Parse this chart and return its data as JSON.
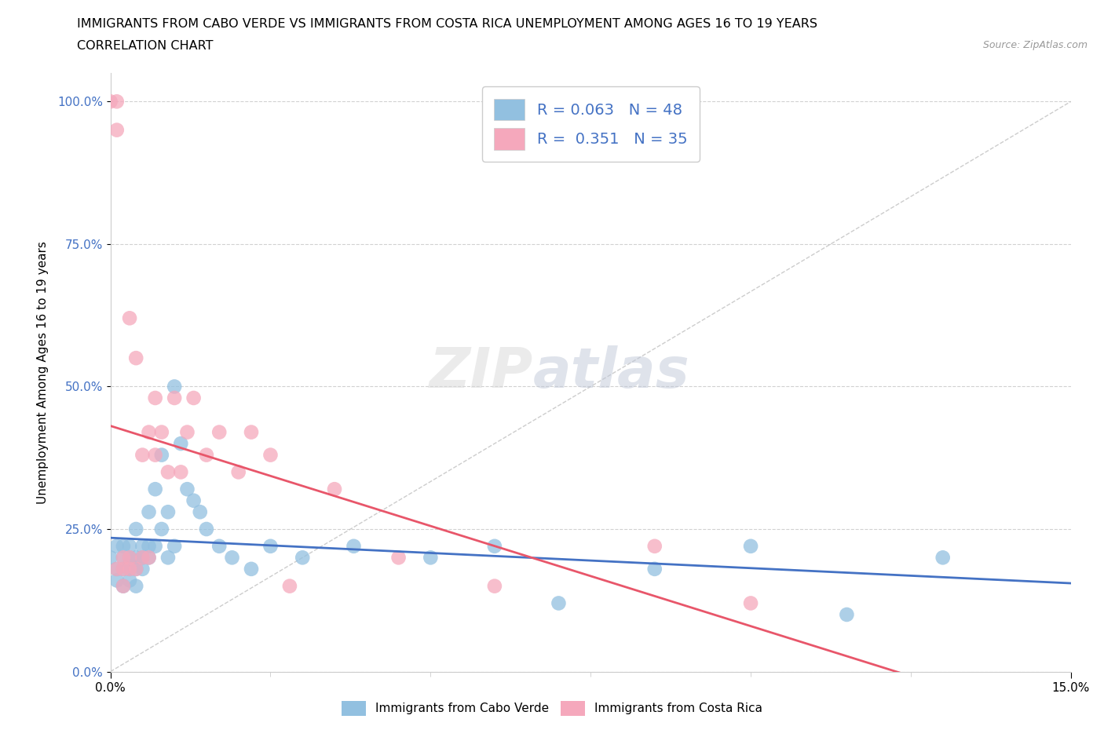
{
  "title_line1": "IMMIGRANTS FROM CABO VERDE VS IMMIGRANTS FROM COSTA RICA UNEMPLOYMENT AMONG AGES 16 TO 19 YEARS",
  "title_line2": "CORRELATION CHART",
  "source_text": "Source: ZipAtlas.com",
  "ylabel": "Unemployment Among Ages 16 to 19 years",
  "xmin": 0.0,
  "xmax": 0.15,
  "ymin": 0.0,
  "ymax": 1.05,
  "ytick_labels": [
    "0.0%",
    "25.0%",
    "50.0%",
    "75.0%",
    "100.0%"
  ],
  "ytick_values": [
    0.0,
    0.25,
    0.5,
    0.75,
    1.0
  ],
  "xtick_values": [
    0.0,
    0.15
  ],
  "xtick_labels": [
    "0.0%",
    "15.0%"
  ],
  "legend_label1": "Immigrants from Cabo Verde",
  "legend_label2": "Immigrants from Costa Rica",
  "R1": 0.063,
  "N1": 48,
  "R2": 0.351,
  "N2": 35,
  "color_blue": "#92C0E0",
  "color_pink": "#F5A8BC",
  "line_color_blue": "#4472C4",
  "line_color_pink": "#E8566A",
  "watermark1": "ZIP",
  "watermark2": "atlas",
  "cabo_verde_x": [
    0.0,
    0.001,
    0.001,
    0.001,
    0.002,
    0.002,
    0.002,
    0.002,
    0.003,
    0.003,
    0.003,
    0.003,
    0.004,
    0.004,
    0.004,
    0.004,
    0.005,
    0.005,
    0.005,
    0.006,
    0.006,
    0.006,
    0.007,
    0.007,
    0.008,
    0.008,
    0.009,
    0.009,
    0.01,
    0.01,
    0.011,
    0.012,
    0.013,
    0.014,
    0.015,
    0.017,
    0.019,
    0.022,
    0.025,
    0.03,
    0.038,
    0.05,
    0.06,
    0.07,
    0.085,
    0.1,
    0.115,
    0.13
  ],
  "cabo_verde_y": [
    0.2,
    0.18,
    0.22,
    0.16,
    0.2,
    0.18,
    0.15,
    0.22,
    0.2,
    0.18,
    0.22,
    0.16,
    0.25,
    0.2,
    0.18,
    0.15,
    0.22,
    0.2,
    0.18,
    0.28,
    0.22,
    0.2,
    0.32,
    0.22,
    0.38,
    0.25,
    0.28,
    0.2,
    0.5,
    0.22,
    0.4,
    0.32,
    0.3,
    0.28,
    0.25,
    0.22,
    0.2,
    0.18,
    0.22,
    0.2,
    0.22,
    0.2,
    0.22,
    0.12,
    0.18,
    0.22,
    0.1,
    0.2
  ],
  "costa_rica_x": [
    0.0,
    0.001,
    0.001,
    0.001,
    0.002,
    0.002,
    0.002,
    0.003,
    0.003,
    0.003,
    0.004,
    0.004,
    0.005,
    0.005,
    0.006,
    0.006,
    0.007,
    0.007,
    0.008,
    0.009,
    0.01,
    0.011,
    0.012,
    0.013,
    0.015,
    0.017,
    0.02,
    0.022,
    0.025,
    0.028,
    0.035,
    0.045,
    0.06,
    0.085,
    0.1
  ],
  "costa_rica_y": [
    1.0,
    1.0,
    0.95,
    0.18,
    0.2,
    0.18,
    0.15,
    0.62,
    0.2,
    0.18,
    0.55,
    0.18,
    0.38,
    0.2,
    0.42,
    0.2,
    0.48,
    0.38,
    0.42,
    0.35,
    0.48,
    0.35,
    0.42,
    0.48,
    0.38,
    0.42,
    0.35,
    0.42,
    0.38,
    0.15,
    0.32,
    0.2,
    0.15,
    0.22,
    0.12
  ]
}
